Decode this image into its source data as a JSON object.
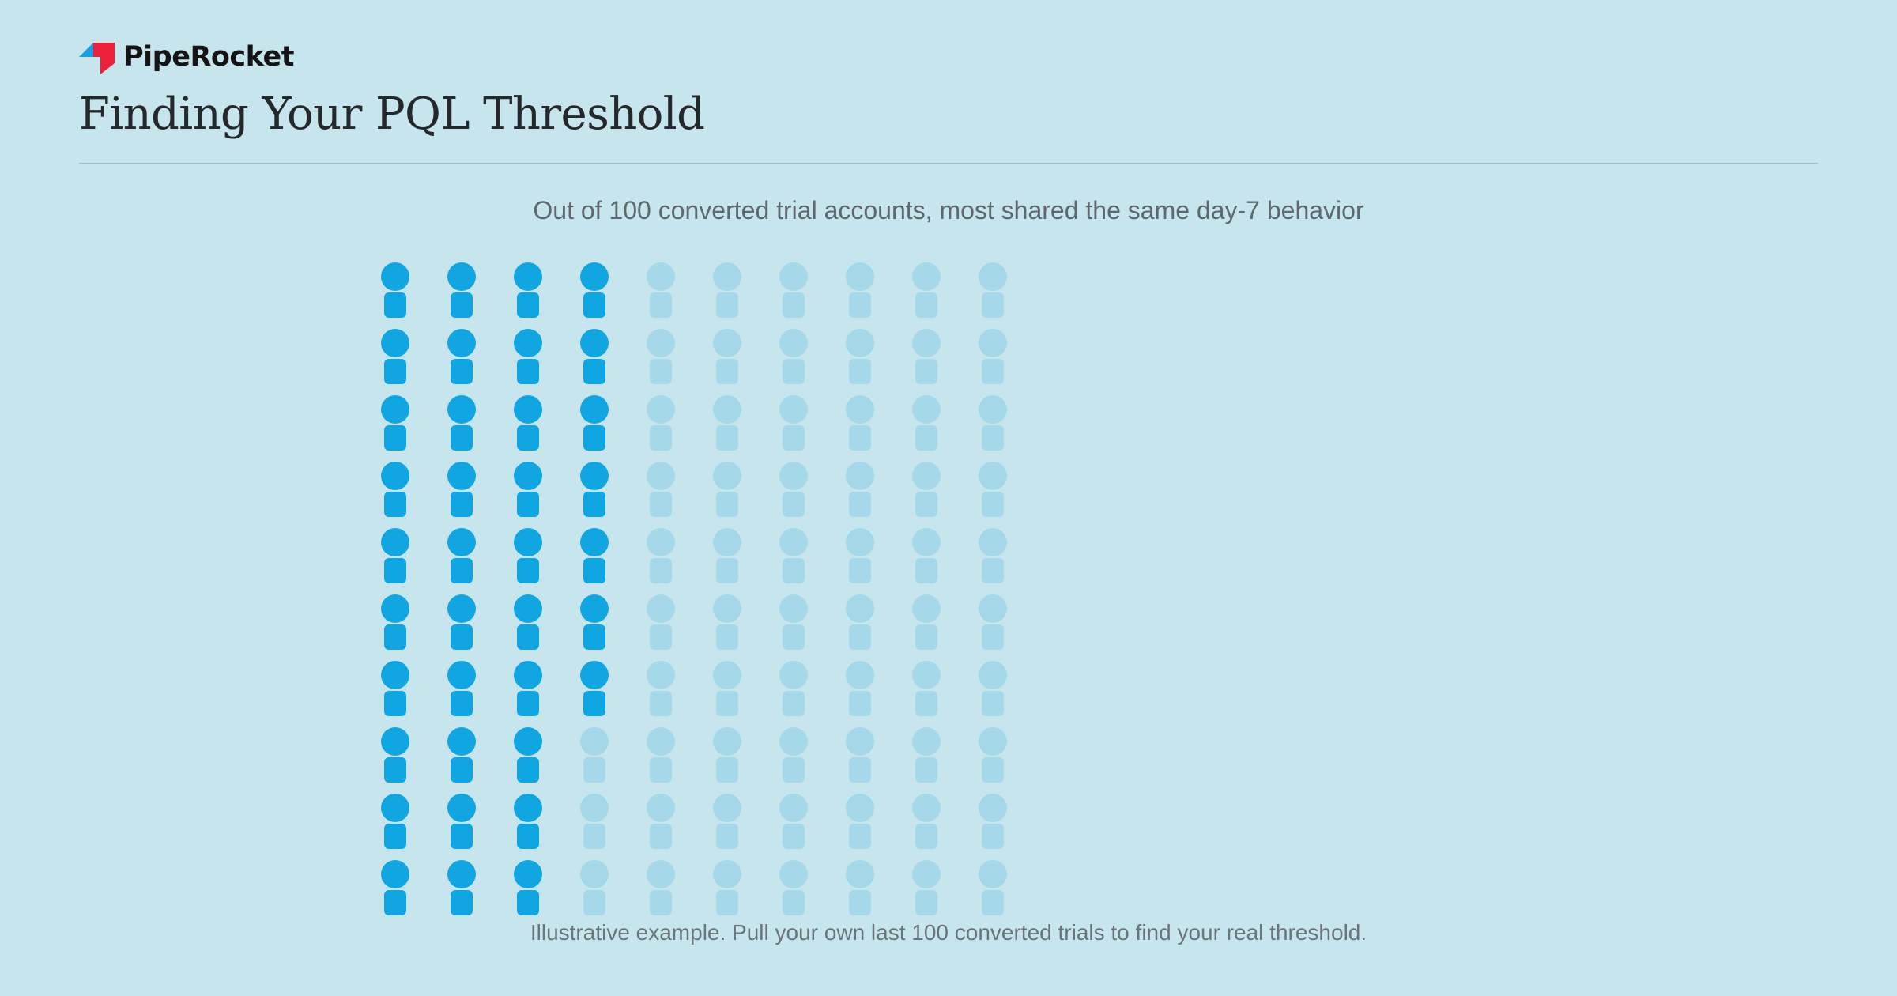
{
  "brand": {
    "name": "PipeRocket",
    "logo_colors": {
      "left": "#1a9fe0",
      "right": "#ee1f3b"
    }
  },
  "page": {
    "title": "Finding Your PQL Threshold"
  },
  "chart_data": {
    "type": "waffle",
    "title": "",
    "subtitle": "Out of 100 converted trial accounts, most shared the same day-7 behavior",
    "total": 100,
    "highlighted": 37,
    "columns": 10,
    "rows": 10,
    "icon": "person-icon",
    "colors": {
      "highlighted": "#10a6e1",
      "rest": "#a5d9e9"
    },
    "footnote": "Illustrative example. Pull your own last 100 converted trials to find your real threshold."
  }
}
